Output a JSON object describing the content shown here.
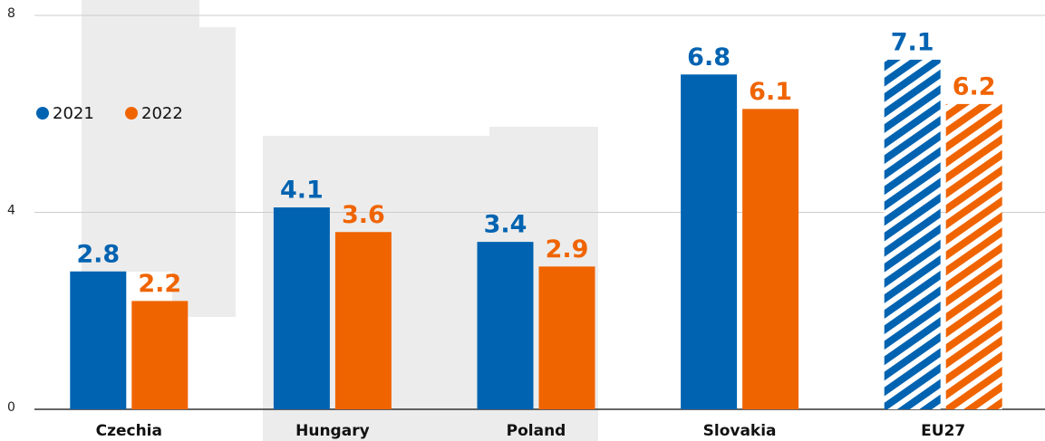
{
  "chart_data": {
    "type": "bar",
    "categories": [
      "Czechia",
      "Hungary",
      "Poland",
      "Slovakia",
      "EU27"
    ],
    "series": [
      {
        "name": "2021",
        "color": "#0063b1",
        "values": [
          2.8,
          4.1,
          3.4,
          6.8,
          7.1
        ]
      },
      {
        "name": "2022",
        "color": "#f06400",
        "values": [
          2.2,
          3.6,
          2.9,
          6.1,
          6.2
        ]
      }
    ],
    "hatched": [
      false,
      false,
      false,
      false,
      true
    ],
    "ylim": [
      0,
      8
    ],
    "yticks": [
      0,
      4,
      8
    ],
    "grid": true,
    "legend": "left"
  }
}
